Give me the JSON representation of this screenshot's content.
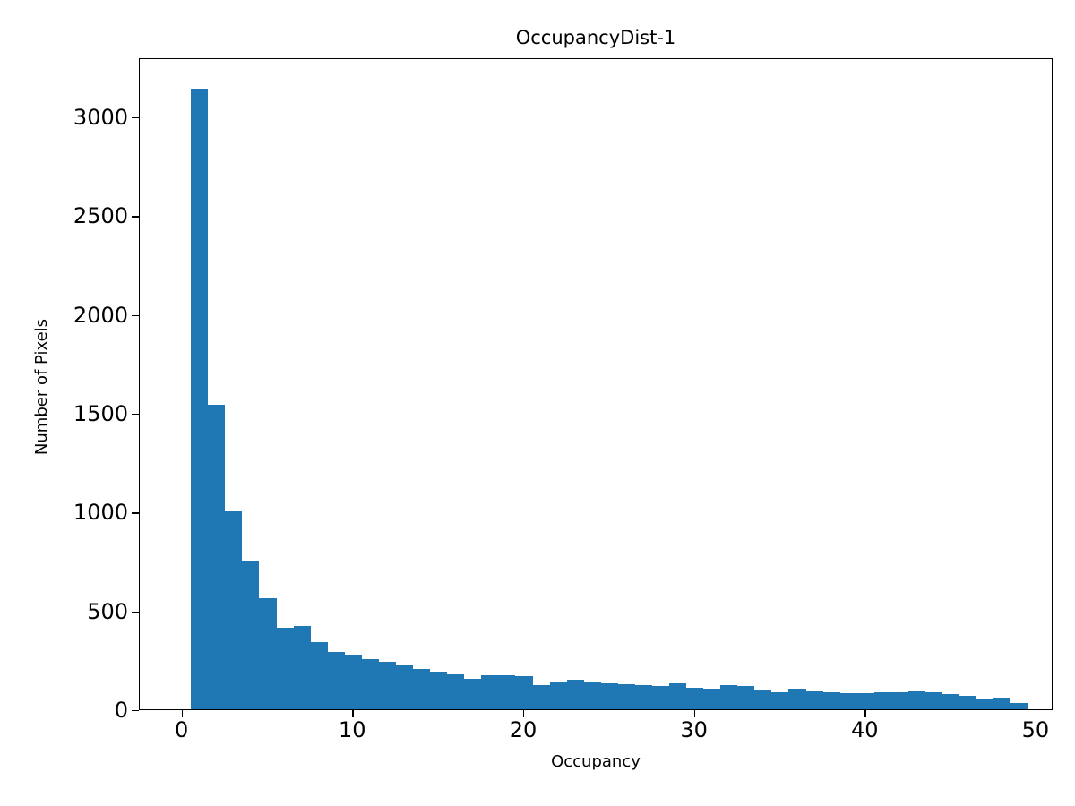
{
  "chart_data": {
    "type": "bar",
    "title": "OccupancyDist-1",
    "xlabel": "Occupancy",
    "ylabel": "Number of Pixels",
    "bar_color": "#1f77b4",
    "grid": false,
    "legend": "none",
    "bin_start": 0.5,
    "bin_width": 1,
    "bin_centers": [
      1,
      2,
      3,
      4,
      5,
      6,
      7,
      8,
      9,
      10,
      11,
      12,
      13,
      14,
      15,
      16,
      17,
      18,
      19,
      20,
      21,
      22,
      23,
      24,
      25,
      26,
      27,
      28,
      29,
      30,
      31,
      32,
      33,
      34,
      35,
      36,
      37,
      38,
      39,
      40,
      41,
      42,
      43,
      44,
      45,
      46,
      47,
      48,
      49
    ],
    "values": [
      3150,
      1550,
      1010,
      760,
      570,
      420,
      430,
      350,
      300,
      285,
      265,
      250,
      230,
      215,
      200,
      185,
      165,
      180,
      180,
      175,
      130,
      150,
      160,
      150,
      140,
      135,
      130,
      125,
      140,
      120,
      115,
      130,
      125,
      110,
      95,
      115,
      100,
      95,
      90,
      90,
      95,
      95,
      100,
      95,
      85,
      75,
      65,
      70,
      40
    ],
    "xlim": [
      -2.5,
      51
    ],
    "ylim": [
      0,
      3300
    ],
    "xticks": [
      0,
      10,
      20,
      30,
      40,
      50
    ],
    "yticks": [
      0,
      500,
      1000,
      1500,
      2000,
      2500,
      3000
    ]
  }
}
